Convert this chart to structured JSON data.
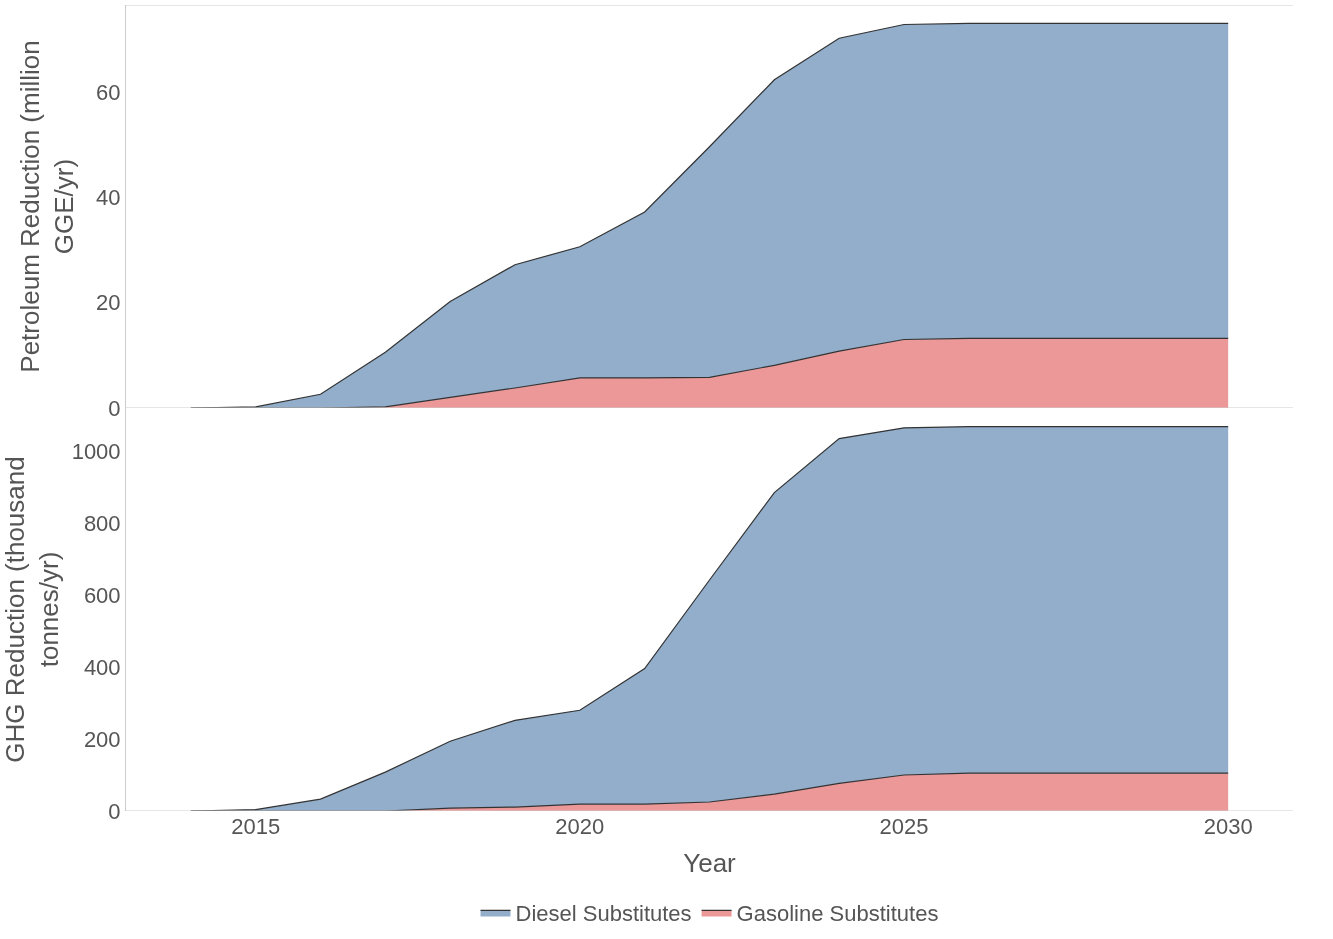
{
  "chart_data": [
    {
      "type": "area",
      "stacked": true,
      "ylabel": "Petroleum Reduction (million GGE/yr)",
      "x": [
        2014,
        2015,
        2016,
        2017,
        2018,
        2019,
        2020,
        2021,
        2022,
        2023,
        2024,
        2025,
        2026,
        2027,
        2028,
        2029,
        2030
      ],
      "xlim": [
        2013,
        2031
      ],
      "xticks": [
        2015,
        2020,
        2025,
        2030
      ],
      "ylim": [
        0,
        76.5
      ],
      "yticks": [
        0,
        20,
        40,
        60
      ],
      "tick_labels": "y",
      "grid": false,
      "legend": "bottom",
      "series": [
        {
          "name": "Gasoline Substitutes",
          "color": "#ec9899",
          "values": [
            0,
            0,
            0,
            0.2,
            2,
            3.8,
            5.7,
            5.7,
            5.8,
            8.1,
            10.8,
            13,
            13.2,
            13.2,
            13.2,
            13.2,
            13.2
          ]
        },
        {
          "name": "Diesel Substitutes",
          "color": "#92aecb",
          "values": [
            0,
            0.2,
            2.6,
            10.4,
            18.2,
            23.4,
            24.9,
            31.5,
            43.8,
            54.2,
            59.4,
            59.8,
            59.8,
            59.8,
            59.8,
            59.8,
            59.8
          ]
        }
      ]
    },
    {
      "type": "area",
      "stacked": true,
      "xlabel": "Year",
      "ylabel": "GHG Reduction (thousand tonnes/yr)",
      "x": [
        2014,
        2015,
        2016,
        2017,
        2018,
        2019,
        2020,
        2021,
        2022,
        2023,
        2024,
        2025,
        2026,
        2027,
        2028,
        2029,
        2030
      ],
      "xlim": [
        2013,
        2031
      ],
      "xticks": [
        2015,
        2020,
        2025,
        2030
      ],
      "ylim": [
        0,
        1120
      ],
      "yticks": [
        0,
        200,
        400,
        600,
        800,
        1000
      ],
      "grid": false,
      "legend": "bottom",
      "series": [
        {
          "name": "Gasoline Substitutes",
          "color": "#ec9899",
          "values": [
            0,
            0,
            0,
            0,
            8,
            11,
            19,
            19,
            25,
            47,
            77,
            100,
            105,
            105,
            105,
            105,
            105
          ]
        },
        {
          "name": "Diesel Substitutes",
          "color": "#92aecb",
          "values": [
            0,
            4,
            33,
            108,
            186,
            241,
            261,
            377,
            617,
            838,
            958,
            965,
            963,
            963,
            963,
            963,
            963
          ]
        }
      ]
    }
  ]
}
